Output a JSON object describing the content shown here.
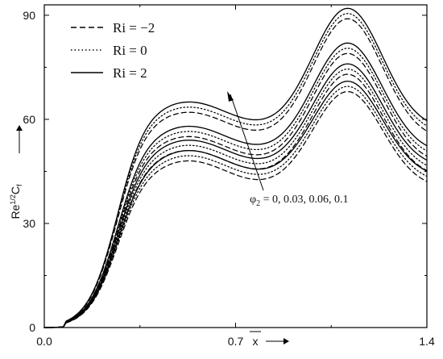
{
  "chart_data": {
    "type": "line",
    "xlim": [
      0,
      1.4
    ],
    "ylim": [
      0,
      93
    ],
    "x_ticks": [
      "0.0",
      "0.7",
      "1.4"
    ],
    "y_ticks": [
      "0",
      "30",
      "60",
      "90"
    ],
    "xlabel": "x",
    "ylabel": "Re1/2Cf",
    "legend_position": "top-left",
    "legend": [
      {
        "label": "Ri = −2",
        "style": "dashed"
      },
      {
        "label": "Ri = 0",
        "style": "dotted"
      },
      {
        "label": "Ri = 2",
        "style": "solid"
      }
    ],
    "annotation": "φ2 = 0, 0.03, 0.06, 0.1",
    "annotation_sub": "2",
    "annotation_main": "φ",
    "annotation_rest": " = 0, 0.03, 0.06, 0.1",
    "phi_values": [
      "0",
      "0.03",
      "0.06",
      "0.1"
    ],
    "ri_values": [
      "−2",
      "0",
      "2"
    ],
    "peaks": [
      [
        65,
        92
      ],
      [
        58,
        82
      ],
      [
        54,
        76
      ],
      [
        51,
        71
      ]
    ],
    "ri_offsets": [
      -3,
      -1.5,
      0
    ],
    "ri_styles": [
      "dashed",
      "dotted",
      "solid"
    ],
    "grid": false
  }
}
